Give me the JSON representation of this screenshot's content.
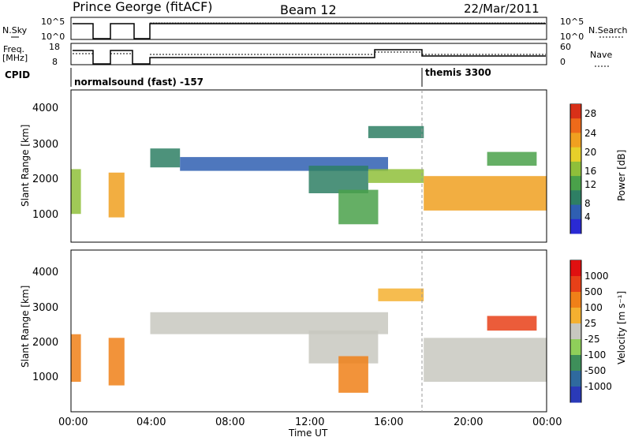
{
  "header": {
    "station": "Prince George (fitACF)",
    "beam": "Beam 12",
    "date": "22/Mar/2011"
  },
  "noise_panel": {
    "left_label": "N.Sky",
    "right_label": "N.Search",
    "left_ticks": [
      "10^5",
      "10^0"
    ],
    "right_ticks": [
      "10^5",
      "10^0"
    ]
  },
  "freq_panel": {
    "left_label_1": "Freq.",
    "left_label_2": "[MHz]",
    "right_label": "Nave",
    "left_ticks": [
      "18",
      "8"
    ],
    "right_ticks": [
      "60",
      "0"
    ]
  },
  "cpid": {
    "label": "CPID",
    "programs": [
      "normalsound (fast) -157",
      "themis 3300"
    ]
  },
  "chart_data": [
    {
      "type": "heatmap",
      "title": "",
      "ylabel": "Slant Range [km]",
      "ylim": [
        180,
        4600
      ],
      "y_ticks": [
        "1000",
        "2000",
        "3000",
        "4000"
      ],
      "x_ticks": [
        "00:00",
        "04:00",
        "08:00",
        "12:00",
        "16:00",
        "20:00",
        "00:00"
      ],
      "colorbar": {
        "label": "Power [dB]",
        "ticks": [
          "28",
          "24",
          "20",
          "16",
          "12",
          "8",
          "4"
        ],
        "colors": [
          "#2a2ad4",
          "#2f5fb2",
          "#2e7f64",
          "#4aa14a",
          "#8fbf3a",
          "#e6d02a",
          "#f0a020",
          "#ee6a1a",
          "#d83018"
        ]
      },
      "series": [
        {
          "t": [
            0.0,
            0.5
          ],
          "r": [
            1000,
            2300
          ],
          "level": 4
        },
        {
          "t": [
            1.9,
            2.7
          ],
          "r": [
            900,
            2200
          ],
          "level": 6
        },
        {
          "t": [
            4.0,
            5.5
          ],
          "r": [
            2350,
            2900
          ],
          "level": 2
        },
        {
          "t": [
            5.5,
            16.0
          ],
          "r": [
            2250,
            2650
          ],
          "level": 1
        },
        {
          "t": [
            12.0,
            15.0
          ],
          "r": [
            1600,
            2400
          ],
          "level": 2
        },
        {
          "t": [
            13.5,
            15.5
          ],
          "r": [
            700,
            1700
          ],
          "level": 3
        },
        {
          "t": [
            15.0,
            17.8
          ],
          "r": [
            3200,
            3550
          ],
          "level": 2
        },
        {
          "t": [
            15.0,
            17.8
          ],
          "r": [
            1900,
            2300
          ],
          "level": 4
        },
        {
          "t": [
            17.8,
            24.0
          ],
          "r": [
            1100,
            2100
          ],
          "level": 6
        },
        {
          "t": [
            21.0,
            23.5
          ],
          "r": [
            2400,
            2800
          ],
          "level": 3
        }
      ]
    },
    {
      "type": "heatmap",
      "title": "",
      "ylabel": "Slant Range [km]",
      "ylim": [
        180,
        4600
      ],
      "y_ticks": [
        "1000",
        "2000",
        "3000",
        "4000"
      ],
      "x_ticks": [
        "00:00",
        "04:00",
        "08:00",
        "12:00",
        "16:00",
        "20:00",
        "00:00"
      ],
      "xlabel": "Time UT",
      "colorbar": {
        "label": "Velocity [m s⁻¹]",
        "ticks": [
          "1000",
          "500",
          "100",
          "25",
          "-25",
          "-100",
          "-500",
          "-1000"
        ],
        "colors": [
          "#2a3ab8",
          "#2f6a9e",
          "#3e8f5a",
          "#8fcf5a",
          "#c8c8c0",
          "#f4b030",
          "#f08018",
          "#e84018",
          "#e01010"
        ]
      },
      "series": [
        {
          "t": [
            0.0,
            0.5
          ],
          "r": [
            1000,
            2300
          ],
          "level": 6
        },
        {
          "t": [
            1.9,
            2.7
          ],
          "r": [
            900,
            2200
          ],
          "level": 6
        },
        {
          "t": [
            4.0,
            16.0
          ],
          "r": [
            2300,
            2900
          ],
          "level": 4
        },
        {
          "t": [
            12.0,
            15.5
          ],
          "r": [
            1500,
            2400
          ],
          "level": 4
        },
        {
          "t": [
            13.5,
            15.0
          ],
          "r": [
            700,
            1700
          ],
          "level": 6
        },
        {
          "t": [
            15.5,
            17.8
          ],
          "r": [
            3200,
            3550
          ],
          "level": 5
        },
        {
          "t": [
            17.8,
            24.0
          ],
          "r": [
            1000,
            2200
          ],
          "level": 4
        },
        {
          "t": [
            21.0,
            23.5
          ],
          "r": [
            2400,
            2800
          ],
          "level": 7
        }
      ]
    }
  ],
  "palette": {
    "frame": "#000000",
    "background": "#ffffff",
    "gap_line": "#999999"
  }
}
